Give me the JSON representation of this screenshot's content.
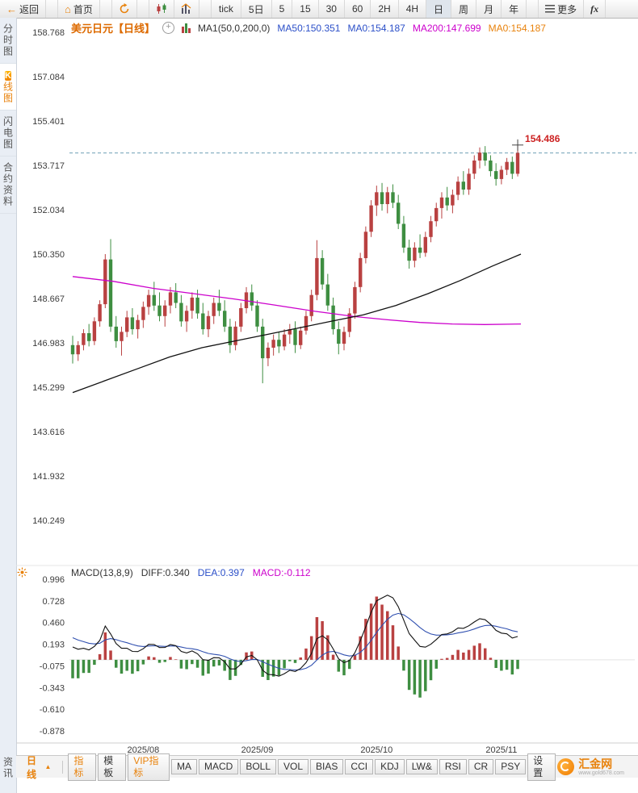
{
  "toolbar": {
    "back": "返回",
    "home": "首页",
    "timeframes": [
      "tick",
      "5日",
      "5",
      "15",
      "30",
      "60",
      "2H",
      "4H",
      "日",
      "周",
      "月",
      "年"
    ],
    "active_timeframe": "日",
    "more": "更多",
    "fx": "fx"
  },
  "icons": {
    "back": "←",
    "home": "⌂",
    "circle_plus": "+",
    "triangle_up": "▲"
  },
  "sidebar": {
    "items": [
      {
        "label": "分时图",
        "active": false
      },
      {
        "label": "K线图",
        "active": true,
        "badge": "K"
      },
      {
        "label": "闪电图",
        "active": false
      },
      {
        "label": "合约资料",
        "active": false
      }
    ],
    "bottom_item": "资讯"
  },
  "chart_header": {
    "title": "美元日元【日线】",
    "ma_param": "MA1(50,0,200,0)",
    "ma_values": [
      {
        "label": "MA50:150.351",
        "color": "#2b4fc8"
      },
      {
        "label": "MA0:154.187",
        "color": "#2b4fc8"
      },
      {
        "label": "MA200:147.699",
        "color": "#cc00cc"
      },
      {
        "label": "MA0:154.187",
        "color": "#e8820c"
      }
    ]
  },
  "price_marker": {
    "value": "154.486",
    "color": "#cc2222"
  },
  "macd_header": {
    "param": "MACD(13,8,9)",
    "diff": "DIFF:0.340",
    "dea": "DEA:0.397",
    "macd": "MACD:-0.112"
  },
  "bottom_bar": {
    "period": "日线",
    "tabs": [
      {
        "label": "指标"
      },
      {
        "label": "模板"
      },
      {
        "label": "VIP指标"
      },
      {
        "label": "MA"
      },
      {
        "label": "MACD"
      },
      {
        "label": "BOLL"
      },
      {
        "label": "VOL"
      },
      {
        "label": "BIAS"
      },
      {
        "label": "CCI"
      },
      {
        "label": "KDJ"
      },
      {
        "label": "LW&"
      },
      {
        "label": "RSI"
      },
      {
        "label": "CR"
      },
      {
        "label": "PSY"
      },
      {
        "label": "设置"
      }
    ],
    "logo_text": "汇金网",
    "logo_sub": "www.gold678.com"
  },
  "chart_data": {
    "type": "candlestick+macd",
    "symbol": "USDJPY daily",
    "colors": {
      "up": "#b94141",
      "down": "#3e8e41",
      "accent": "#e8820c",
      "ma50": "#111111",
      "ma200": "#cc00cc",
      "dashed_last": "#6fa0b6",
      "diff_line": "#111111",
      "dea_line": "#3050b0"
    },
    "y_axis_main": [
      "158.768",
      "157.084",
      "155.401",
      "153.717",
      "152.034",
      "150.350",
      "148.667",
      "146.983",
      "145.299",
      "143.616",
      "141.932",
      "140.249"
    ],
    "y_axis_macd": [
      "0.996",
      "0.728",
      "0.460",
      "0.193",
      "-0.075",
      "-0.343",
      "-0.610",
      "-0.878"
    ],
    "x_axis": [
      {
        "index": 13,
        "label": "2025/08"
      },
      {
        "index": 34,
        "label": "2025/09"
      },
      {
        "index": 56,
        "label": "2025/10"
      },
      {
        "index": 79,
        "label": "2025/11"
      }
    ],
    "last_price": 154.187,
    "macd_params": {
      "p1": 13,
      "p2": 8,
      "signal": 9,
      "short_ema": 8,
      "long_ema": 13
    },
    "indicator_seed": [
      145.2,
      145.7,
      146.3,
      146.9,
      147.4,
      147.8,
      148.0,
      147.9,
      147.6,
      147.3,
      147.0,
      146.8
    ],
    "candles": [
      [
        146.9,
        147.25,
        146.2,
        146.55
      ],
      [
        146.55,
        147.05,
        146.3,
        146.9
      ],
      [
        146.9,
        147.5,
        146.7,
        147.35
      ],
      [
        147.35,
        147.7,
        146.85,
        147.05
      ],
      [
        147.05,
        147.95,
        146.9,
        147.8
      ],
      [
        147.8,
        148.6,
        147.6,
        148.45
      ],
      [
        148.45,
        150.35,
        148.3,
        150.15
      ],
      [
        150.15,
        150.92,
        147.4,
        147.6
      ],
      [
        147.6,
        148.0,
        146.8,
        147.05
      ],
      [
        147.05,
        147.6,
        146.5,
        147.4
      ],
      [
        147.4,
        148.2,
        147.2,
        147.95
      ],
      [
        147.95,
        148.3,
        147.3,
        147.5
      ],
      [
        147.5,
        148.05,
        147.15,
        147.85
      ],
      [
        147.85,
        148.55,
        147.55,
        148.35
      ],
      [
        148.35,
        149.0,
        148.05,
        148.8
      ],
      [
        148.8,
        149.3,
        148.2,
        148.4
      ],
      [
        148.4,
        148.9,
        147.8,
        148.0
      ],
      [
        148.0,
        148.6,
        147.6,
        148.4
      ],
      [
        148.4,
        149.1,
        148.1,
        148.9
      ],
      [
        148.9,
        149.25,
        148.3,
        148.5
      ],
      [
        148.5,
        148.8,
        147.6,
        147.8
      ],
      [
        147.8,
        148.4,
        147.4,
        148.2
      ],
      [
        148.2,
        148.9,
        147.9,
        148.7
      ],
      [
        148.7,
        149.0,
        147.9,
        148.1
      ],
      [
        148.1,
        148.5,
        147.3,
        147.5
      ],
      [
        147.5,
        148.2,
        147.2,
        148.0
      ],
      [
        148.0,
        148.7,
        147.7,
        148.5
      ],
      [
        148.5,
        149.0,
        148.0,
        148.2
      ],
      [
        148.2,
        148.6,
        147.4,
        147.6
      ],
      [
        147.6,
        147.9,
        146.6,
        146.9
      ],
      [
        146.9,
        147.8,
        146.7,
        147.6
      ],
      [
        147.6,
        148.5,
        147.4,
        148.3
      ],
      [
        148.3,
        149.1,
        148.1,
        148.9
      ],
      [
        148.9,
        149.2,
        148.2,
        148.4
      ],
      [
        148.4,
        148.6,
        147.4,
        147.6
      ],
      [
        147.6,
        147.9,
        145.45,
        146.4
      ],
      [
        146.4,
        147.0,
        146.1,
        146.8
      ],
      [
        146.8,
        147.3,
        146.5,
        147.1
      ],
      [
        147.1,
        147.4,
        146.6,
        146.85
      ],
      [
        146.85,
        147.5,
        146.7,
        147.3
      ],
      [
        147.3,
        147.7,
        146.95,
        147.5
      ],
      [
        147.5,
        147.8,
        146.6,
        146.9
      ],
      [
        146.9,
        147.6,
        146.75,
        147.45
      ],
      [
        147.45,
        148.2,
        147.3,
        148.0
      ],
      [
        148.0,
        149.0,
        147.8,
        148.8
      ],
      [
        148.8,
        150.88,
        148.6,
        150.2
      ],
      [
        150.2,
        150.5,
        149.0,
        149.2
      ],
      [
        149.2,
        149.6,
        148.2,
        148.4
      ],
      [
        148.4,
        148.7,
        147.3,
        147.5
      ],
      [
        147.5,
        147.8,
        146.55,
        146.95
      ],
      [
        146.95,
        147.6,
        146.7,
        147.4
      ],
      [
        147.4,
        148.3,
        147.2,
        148.1
      ],
      [
        148.1,
        149.3,
        147.9,
        149.1
      ],
      [
        149.1,
        150.4,
        148.9,
        150.2
      ],
      [
        150.2,
        151.4,
        150.0,
        151.2
      ],
      [
        151.2,
        152.4,
        151.0,
        152.2
      ],
      [
        152.2,
        152.95,
        151.8,
        152.7
      ],
      [
        152.7,
        153.05,
        152.0,
        152.25
      ],
      [
        152.25,
        152.9,
        151.9,
        152.7
      ],
      [
        152.7,
        153.0,
        152.1,
        152.3
      ],
      [
        152.3,
        152.6,
        151.3,
        151.5
      ],
      [
        151.5,
        151.8,
        150.4,
        150.6
      ],
      [
        150.6,
        150.9,
        149.8,
        150.1
      ],
      [
        150.1,
        150.8,
        149.85,
        150.6
      ],
      [
        150.6,
        151.1,
        150.2,
        150.4
      ],
      [
        150.4,
        151.2,
        150.25,
        151.0
      ],
      [
        151.0,
        151.8,
        150.8,
        151.6
      ],
      [
        151.6,
        152.3,
        151.4,
        152.1
      ],
      [
        152.1,
        152.7,
        151.7,
        152.5
      ],
      [
        152.5,
        152.9,
        152.0,
        152.2
      ],
      [
        152.2,
        152.8,
        151.9,
        152.6
      ],
      [
        152.6,
        153.3,
        152.4,
        153.1
      ],
      [
        153.1,
        153.5,
        152.6,
        152.8
      ],
      [
        152.8,
        153.6,
        152.6,
        153.4
      ],
      [
        153.4,
        154.1,
        153.2,
        153.9
      ],
      [
        153.9,
        154.4,
        153.6,
        154.2
      ],
      [
        154.2,
        154.45,
        153.7,
        153.9
      ],
      [
        153.9,
        154.1,
        153.3,
        153.5
      ],
      [
        153.5,
        153.8,
        152.95,
        153.2
      ],
      [
        153.2,
        153.7,
        153.0,
        153.55
      ],
      [
        153.55,
        154.0,
        153.35,
        153.85
      ],
      [
        153.85,
        154.05,
        153.2,
        153.4
      ],
      [
        153.4,
        154.49,
        153.3,
        154.19
      ]
    ],
    "ma50": {
      "color": "#111111",
      "points": [
        [
          90,
          145.1
        ],
        [
          130,
          145.55
        ],
        [
          170,
          146.0
        ],
        [
          210,
          146.45
        ],
        [
          250,
          146.8
        ],
        [
          290,
          147.05
        ],
        [
          330,
          147.3
        ],
        [
          370,
          147.55
        ],
        [
          410,
          147.8
        ],
        [
          450,
          148.05
        ],
        [
          490,
          148.4
        ],
        [
          530,
          148.85
        ],
        [
          570,
          149.35
        ],
        [
          610,
          149.9
        ],
        [
          645,
          150.35
        ]
      ]
    },
    "ma200": {
      "color": "#cc00cc",
      "points": [
        [
          90,
          149.5
        ],
        [
          140,
          149.32
        ],
        [
          190,
          149.05
        ],
        [
          240,
          148.85
        ],
        [
          290,
          148.65
        ],
        [
          340,
          148.42
        ],
        [
          390,
          148.18
        ],
        [
          440,
          147.98
        ],
        [
          480,
          147.86
        ],
        [
          520,
          147.76
        ],
        [
          560,
          147.7
        ],
        [
          600,
          147.68
        ],
        [
          645,
          147.7
        ]
      ]
    }
  }
}
